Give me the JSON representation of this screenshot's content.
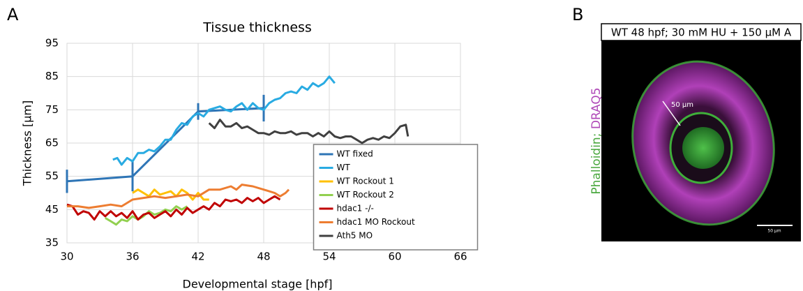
{
  "panel_a": "A",
  "panel_b": "B",
  "image": {
    "title": "WT 48 hpf; 30 mM HU + 150 µM A",
    "stain_labels": [
      "Phalloidin;",
      "DRAQ5"
    ],
    "arrow_label": "50 µm",
    "scale_bar_label": "50 µm"
  },
  "chart_data": {
    "type": "line",
    "title": "Tissue thickness",
    "x_label": "Developmental stage [hpf]",
    "y_label": "Thickness [µm]",
    "xlim": [
      30,
      66
    ],
    "xticks": [
      30,
      36,
      42,
      48,
      54,
      60,
      66
    ],
    "ylim": [
      35,
      95
    ],
    "yticks": [
      35,
      45,
      55,
      65,
      75,
      85,
      95
    ],
    "grid": true,
    "legend": "lower right",
    "series": [
      {
        "name": "WT fixed",
        "color": "#2e75b6",
        "x": [
          30,
          36,
          42,
          48
        ],
        "values": [
          53.5,
          55,
          74.5,
          75.5
        ],
        "errors": [
          3.5,
          4.5,
          2.5,
          4
        ]
      },
      {
        "name": "WT",
        "color": "#29abe2",
        "x": [
          34.2,
          34.6,
          35,
          35.5,
          36,
          36.5,
          37,
          37.5,
          38,
          38.5,
          39,
          39.5,
          40,
          40.5,
          41,
          41.5,
          42,
          42.5,
          43,
          43.5,
          44,
          44.5,
          45,
          45.5,
          46,
          46.5,
          47,
          47.5,
          48,
          48.5,
          49,
          49.5,
          50,
          50.5,
          51,
          51.5,
          52,
          52.5,
          53,
          53.5,
          54,
          54.5
        ],
        "values": [
          60,
          60.5,
          58.5,
          60.5,
          59.5,
          62,
          62,
          63,
          62.5,
          64,
          66,
          66,
          69,
          71,
          70.5,
          73,
          74,
          73,
          75,
          75.5,
          76,
          75,
          74.5,
          76,
          77,
          75,
          77,
          75.5,
          75,
          77,
          78,
          78.5,
          80,
          80.5,
          80,
          82,
          81,
          83,
          82,
          83,
          85,
          83
        ]
      },
      {
        "name": "WT Rockout 1",
        "color": "#ffc000",
        "x": [
          36,
          36.5,
          37,
          37.5,
          38,
          38.5,
          39,
          39.5,
          40,
          40.5,
          41,
          41.5,
          42,
          42.5,
          43
        ],
        "values": [
          50,
          51,
          50,
          49,
          51,
          49.5,
          50,
          50.5,
          49,
          51,
          50,
          48,
          50,
          48,
          48
        ]
      },
      {
        "name": "WT Rockout 2",
        "color": "#92d050",
        "x": [
          33.5,
          34,
          34.5,
          35,
          35.5,
          36,
          36.5,
          37,
          37.5,
          38,
          38.5,
          39,
          39.5,
          40,
          40.5,
          41
        ],
        "values": [
          42.5,
          41.5,
          40.5,
          42,
          41.5,
          43,
          42,
          43,
          44.5,
          43.5,
          44,
          45,
          44.5,
          46,
          45,
          46
        ]
      },
      {
        "name": "hdac1 -/-",
        "color": "#c00000",
        "x": [
          30,
          30.5,
          31,
          31.5,
          32,
          32.5,
          33,
          33.5,
          34,
          34.5,
          35,
          35.5,
          36,
          36.5,
          37,
          37.5,
          38,
          38.5,
          39,
          39.5,
          40,
          40.5,
          41,
          41.5,
          42,
          42.5,
          43,
          43.5,
          44,
          44.5,
          45,
          45.5,
          46,
          46.5,
          47,
          47.5,
          48,
          48.5,
          49,
          49.5
        ],
        "values": [
          46.5,
          46,
          43.5,
          44.5,
          44,
          42,
          44.5,
          43,
          44.5,
          43,
          44,
          42.5,
          44.5,
          42,
          43.5,
          44,
          42.5,
          43.5,
          44.5,
          43,
          45,
          43.5,
          45.5,
          44,
          45,
          46,
          45,
          47,
          46,
          48,
          47.5,
          48,
          47,
          48.5,
          47.5,
          48.5,
          47,
          48,
          49,
          48
        ]
      },
      {
        "name": "hdac1 MO Rockout",
        "color": "#ed7d31",
        "x": [
          30,
          31,
          32,
          33,
          34,
          35,
          36,
          37,
          38,
          39,
          40,
          41,
          42,
          43,
          44,
          45,
          45.5,
          46,
          47,
          48,
          49,
          49.5,
          50,
          50.3
        ],
        "values": [
          46,
          46,
          45.5,
          46,
          46.5,
          46,
          48,
          48.5,
          49,
          48.5,
          49,
          49.5,
          49,
          51,
          51,
          52,
          51,
          52.5,
          52,
          51,
          50,
          49,
          50,
          51
        ]
      },
      {
        "name": "Ath5 MO",
        "color": "#404040",
        "x": [
          43,
          43.5,
          44,
          44.5,
          45,
          45.5,
          46,
          46.5,
          47,
          47.5,
          48,
          48.5,
          49,
          49.5,
          50,
          50.5,
          51,
          51.5,
          52,
          52.5,
          53,
          53.5,
          54,
          54.5,
          55,
          55.5,
          56,
          56.5,
          57,
          57.5,
          58,
          58.5,
          59,
          59.5,
          60,
          60.5,
          61,
          61.2
        ],
        "values": [
          71,
          69.5,
          72,
          70,
          70,
          71,
          69.5,
          70,
          69,
          68,
          68,
          67.5,
          68.5,
          68,
          68,
          68.5,
          67.5,
          68,
          68,
          67,
          68,
          67,
          68.5,
          67,
          66.5,
          67,
          67,
          66,
          65,
          66,
          66.5,
          66,
          67,
          66.5,
          68,
          70,
          70.5,
          67
        ]
      }
    ]
  }
}
